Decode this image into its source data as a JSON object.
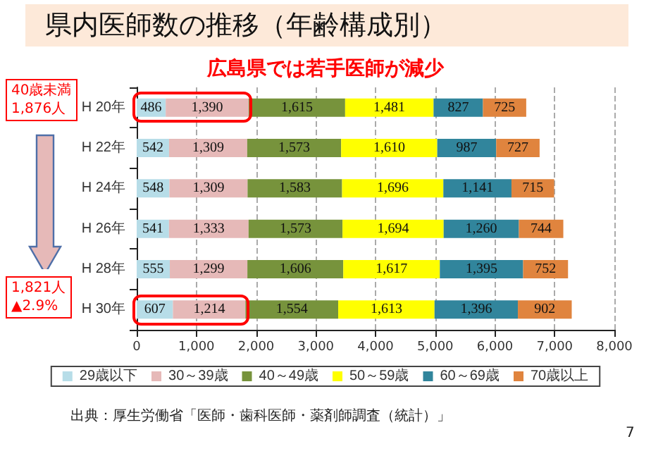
{
  "chart_data": {
    "type": "bar",
    "orientation": "horizontal",
    "stacked": true,
    "title": "県内医師数の推移（年齢構成別）",
    "subtitle": "広島県では若手医師が減少",
    "categories": [
      "H 20年",
      "H 22年",
      "H 24年",
      "H 26年",
      "H 28年",
      "H 30年"
    ],
    "series": [
      {
        "name": "29歳以下",
        "color": "#b7dde8",
        "values": [
          486,
          542,
          548,
          541,
          555,
          607
        ],
        "value_labels": [
          "486",
          "542",
          "548",
          "541",
          "555",
          "607"
        ]
      },
      {
        "name": "30～39歳",
        "color": "#e6b9b8",
        "values": [
          1390,
          1309,
          1309,
          1333,
          1299,
          1214
        ],
        "value_labels": [
          "1,390",
          "1,309",
          "1,309",
          "1,333",
          "1,299",
          "1,214"
        ]
      },
      {
        "name": "40～49歳",
        "color": "#77933c",
        "values": [
          1615,
          1573,
          1583,
          1573,
          1606,
          1554
        ],
        "value_labels": [
          "1,615",
          "1,573",
          "1,583",
          "1,573",
          "1,606",
          "1,554"
        ]
      },
      {
        "name": "50～59歳",
        "color": "#ffff00",
        "values": [
          1481,
          1610,
          1696,
          1694,
          1617,
          1613
        ],
        "value_labels": [
          "1,481",
          "1,610",
          "1,696",
          "1,694",
          "1,617",
          "1,613"
        ]
      },
      {
        "name": "60～69歳",
        "color": "#31859c",
        "values": [
          827,
          987,
          1141,
          1260,
          1395,
          1396
        ],
        "value_labels": [
          "827",
          "987",
          "1,141",
          "1,260",
          "1,395",
          "1,396"
        ]
      },
      {
        "name": "70歳以上",
        "color": "#e0843e",
        "values": [
          725,
          727,
          715,
          744,
          752,
          902
        ],
        "value_labels": [
          "725",
          "727",
          "715",
          "744",
          "752",
          "902"
        ]
      }
    ],
    "xlim": [
      0,
      8000
    ],
    "xticks": [
      0,
      {
        "value": 1000,
        "label": "1,000"
      },
      {
        "value": 2000,
        "label": "2,000"
      },
      {
        "value": 3000,
        "label": "3,000"
      },
      {
        "value": 4000,
        "label": "4,000"
      },
      {
        "value": 5000,
        "label": "5,000"
      },
      {
        "value": 6000,
        "label": "6,000"
      },
      {
        "value": 7000,
        "label": "7,000"
      },
      {
        "value": 8000,
        "label": "8,000"
      }
    ],
    "grid": "x",
    "legend": "bottom",
    "annotations": [
      "40歳未満\n1,876人",
      "1,821人\n▲2.9%",
      "出典：厚生労働省「医師・歯科医師・薬剤師調査（統計）」",
      "7"
    ]
  }
}
